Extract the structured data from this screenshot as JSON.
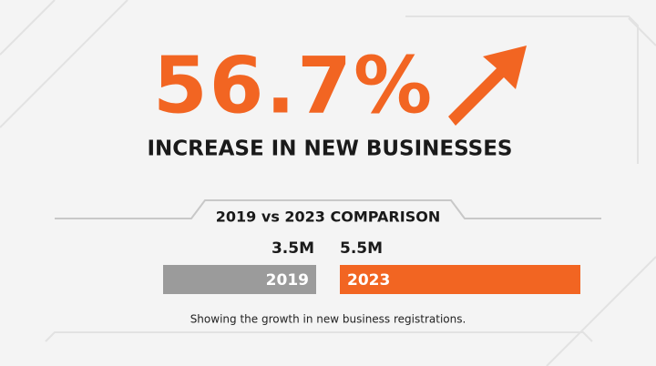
{
  "headline": "56.7%",
  "subheadline": "INCREASE IN NEW BUSINESSES",
  "caption": "Showing the growth in new business registrations.",
  "chart_data": {
    "type": "bar",
    "title": "2019 vs 2023 COMPARISON",
    "categories": [
      "2019",
      "2023"
    ],
    "values": [
      3.5,
      5.5
    ],
    "value_labels": [
      "3.5M",
      "5.5M"
    ],
    "colors": [
      "#9b9b9b",
      "#f26522"
    ]
  }
}
